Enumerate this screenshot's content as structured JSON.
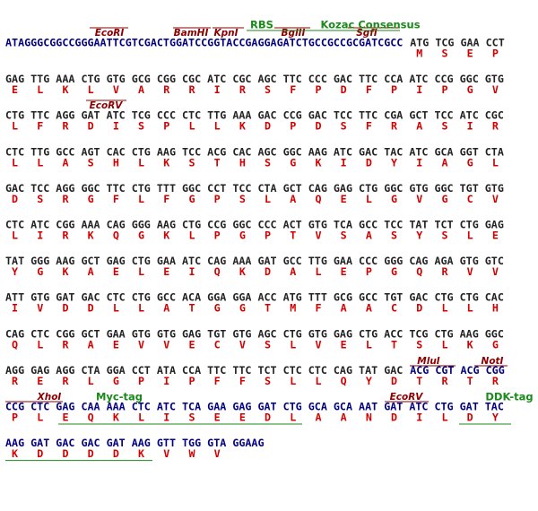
{
  "aa_color": "#d40000",
  "label_color": "#8b0000",
  "tag_color": "#1a8a1a",
  "rows": [
    {
      "segments": [
        {
          "seq": "ATAGGGCGGCCGGGAATTCGTCGACTGGATCCGGTACCGAGGAGATCTGCCGCCGCGATCGCC",
          "color": "#000080"
        },
        {
          "seq": "ATG TCG GAA CCT",
          "color": "#222222"
        }
      ],
      "aa": [
        "M",
        "S",
        "E",
        "P"
      ],
      "labels": [
        {
          "text": "EcoRI",
          "kind": "site"
        },
        {
          "text": "BamHI",
          "kind": "site"
        },
        {
          "text": "KpnI",
          "kind": "site"
        },
        {
          "text": "BglII",
          "kind": "site"
        },
        {
          "text": "SgfI",
          "kind": "site"
        },
        {
          "text": "RBS",
          "kind": "tag"
        },
        {
          "text": "Kozac Consensus",
          "kind": "tag"
        }
      ]
    },
    {
      "segments": [
        {
          "seq": "GAG TTG AAA CTG GTG GCG CGG CGC ATC CGC AGC TTC CCC GAC TTC CCA ATC CCG GGC GTG",
          "color": "#222222"
        }
      ],
      "aa": [
        "E",
        "L",
        "K",
        "L",
        "V",
        "A",
        "R",
        "R",
        "I",
        "R",
        "S",
        "F",
        "P",
        "D",
        "F",
        "P",
        "I",
        "P",
        "G",
        "V"
      ],
      "labels": []
    },
    {
      "segments": [
        {
          "seq": "CTG TTC AGG GAT ATC TCG CCC CTC TTG AAA GAC CCG GAC TCC TTC CGA GCT TCC ATC CGC",
          "color": "#222222"
        }
      ],
      "aa": [
        "L",
        "F",
        "R",
        "D",
        "I",
        "S",
        "P",
        "L",
        "L",
        "K",
        "D",
        "P",
        "D",
        "S",
        "F",
        "R",
        "A",
        "S",
        "I",
        "R"
      ],
      "labels": [
        {
          "text": "EcoRV",
          "kind": "site"
        }
      ]
    },
    {
      "segments": [
        {
          "seq": "CTC TTG GCC AGT CAC CTG AAG TCC ACG CAC AGC GGC AAG ATC GAC TAC ATC GCA GGT CTA",
          "color": "#222222"
        }
      ],
      "aa": [
        "L",
        "L",
        "A",
        "S",
        "H",
        "L",
        "K",
        "S",
        "T",
        "H",
        "S",
        "G",
        "K",
        "I",
        "D",
        "Y",
        "I",
        "A",
        "G",
        "L"
      ],
      "labels": []
    },
    {
      "segments": [
        {
          "seq": "GAC TCC AGG GGC TTC CTG TTT GGC CCT TCC CTA GCT CAG GAG CTG GGC GTG GGC TGT GTG",
          "color": "#222222"
        }
      ],
      "aa": [
        "D",
        "S",
        "R",
        "G",
        "F",
        "L",
        "F",
        "G",
        "P",
        "S",
        "L",
        "A",
        "Q",
        "E",
        "L",
        "G",
        "V",
        "G",
        "C",
        "V"
      ],
      "labels": []
    },
    {
      "segments": [
        {
          "seq": "CTC ATC CGG AAA CAG GGG AAG CTG CCG GGC CCC ACT GTG TCA GCC TCC TAT TCT CTG GAG",
          "color": "#222222"
        }
      ],
      "aa": [
        "L",
        "I",
        "R",
        "K",
        "Q",
        "G",
        "K",
        "L",
        "P",
        "G",
        "P",
        "T",
        "V",
        "S",
        "A",
        "S",
        "Y",
        "S",
        "L",
        "E"
      ],
      "labels": []
    },
    {
      "segments": [
        {
          "seq": "TAT GGG AAG GCT GAG CTG GAA ATC CAG AAA GAT GCC TTG GAA CCC GGG CAG AGA GTG GTC",
          "color": "#222222"
        }
      ],
      "aa": [
        "Y",
        "G",
        "K",
        "A",
        "E",
        "L",
        "E",
        "I",
        "Q",
        "K",
        "D",
        "A",
        "L",
        "E",
        "P",
        "G",
        "Q",
        "R",
        "V",
        "V"
      ],
      "labels": []
    },
    {
      "segments": [
        {
          "seq": "ATT GTG GAT GAC CTC CTG GCC ACA GGA GGA ACC ATG TTT GCG GCC TGT GAC CTG CTG CAC",
          "color": "#222222"
        }
      ],
      "aa": [
        "I",
        "V",
        "D",
        "D",
        "L",
        "L",
        "A",
        "T",
        "G",
        "G",
        "T",
        "M",
        "F",
        "A",
        "A",
        "C",
        "D",
        "L",
        "L",
        "H"
      ],
      "labels": []
    },
    {
      "segments": [
        {
          "seq": "CAG CTC CGG GCT GAA GTG GTG GAG TGT GTG AGC CTG GTG GAG CTG ACC TCG CTG AAG GGC",
          "color": "#222222"
        }
      ],
      "aa": [
        "Q",
        "L",
        "R",
        "A",
        "E",
        "V",
        "V",
        "E",
        "C",
        "V",
        "S",
        "L",
        "V",
        "E",
        "L",
        "T",
        "S",
        "L",
        "K",
        "G"
      ],
      "labels": []
    },
    {
      "segments": [
        {
          "seq": "AGG GAG AGG CTA GGA CCT ATA CCA TTC TTC TCT CTC CTC CAG TAT GAC",
          "color": "#222222"
        },
        {
          "seq": "ACG CGT ACG CGG",
          "color": "#000080"
        }
      ],
      "aa": [
        "R",
        "E",
        "R",
        "L",
        "G",
        "P",
        "I",
        "P",
        "F",
        "F",
        "S",
        "L",
        "L",
        "Q",
        "Y",
        "D",
        "T",
        "R",
        "T",
        "R"
      ],
      "labels": [
        {
          "text": "MluI",
          "kind": "site"
        },
        {
          "text": "NotI",
          "kind": "site"
        }
      ]
    },
    {
      "segments": [
        {
          "seq": "CCG CTC GAG CAA AAA CTC ATC TCA GAA GAG GAT CTG GCA GCA AAT GAT ATC CTG GAT TAC",
          "color": "#000080"
        }
      ],
      "aa": [
        "P",
        "L",
        "E",
        "Q",
        "K",
        "L",
        "I",
        "S",
        "E",
        "E",
        "D",
        "L",
        "A",
        "A",
        "N",
        "D",
        "I",
        "L",
        "D",
        "Y"
      ],
      "labels": [
        {
          "text": "XhoI",
          "kind": "site"
        },
        {
          "text": "Myc-tag",
          "kind": "tag"
        },
        {
          "text": "EcoRV",
          "kind": "site"
        },
        {
          "text": "DDK-tag",
          "kind": "tag"
        }
      ]
    },
    {
      "segments": [
        {
          "seq": "AAG GAT GAC GAC GAT AAG GTT TGG GTA GGAAG",
          "color": "#000080"
        }
      ],
      "aa": [
        "K",
        "D",
        "D",
        "D",
        "D",
        "K",
        "V",
        "W",
        "V"
      ],
      "labels": []
    }
  ]
}
